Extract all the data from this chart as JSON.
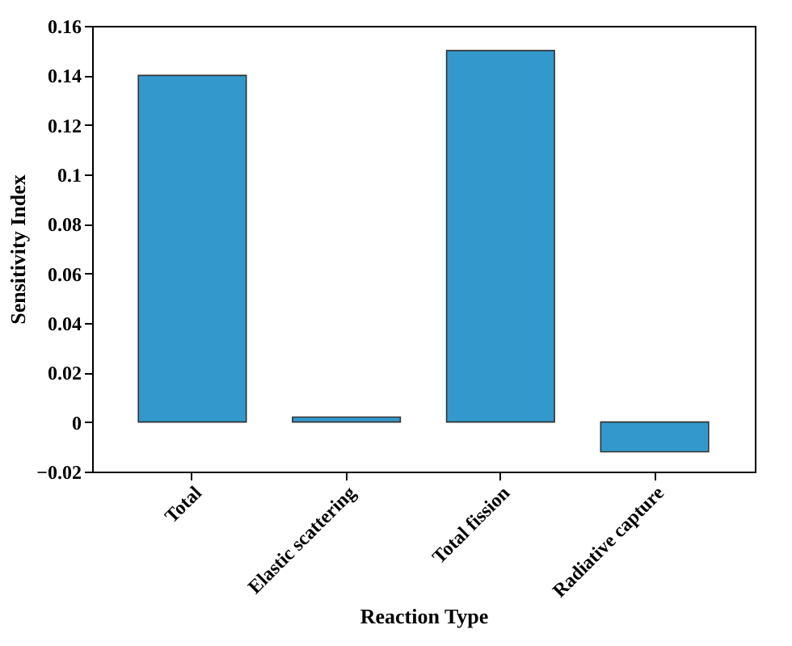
{
  "chart_data": {
    "type": "bar",
    "xlabel": "Reaction Type",
    "ylabel": "Sensitivity Index",
    "categories": [
      "Total",
      "Elastic scattering",
      "Total fission",
      "Radiative capture"
    ],
    "values": [
      0.14,
      0.002,
      0.15,
      -0.012
    ],
    "color": "#3399cc",
    "ylim": [
      -0.02,
      0.16
    ],
    "yticks": [
      -0.02,
      0,
      0.02,
      0.04,
      0.06,
      0.08,
      0.1,
      0.12,
      0.14,
      0.16
    ],
    "grid": false
  }
}
